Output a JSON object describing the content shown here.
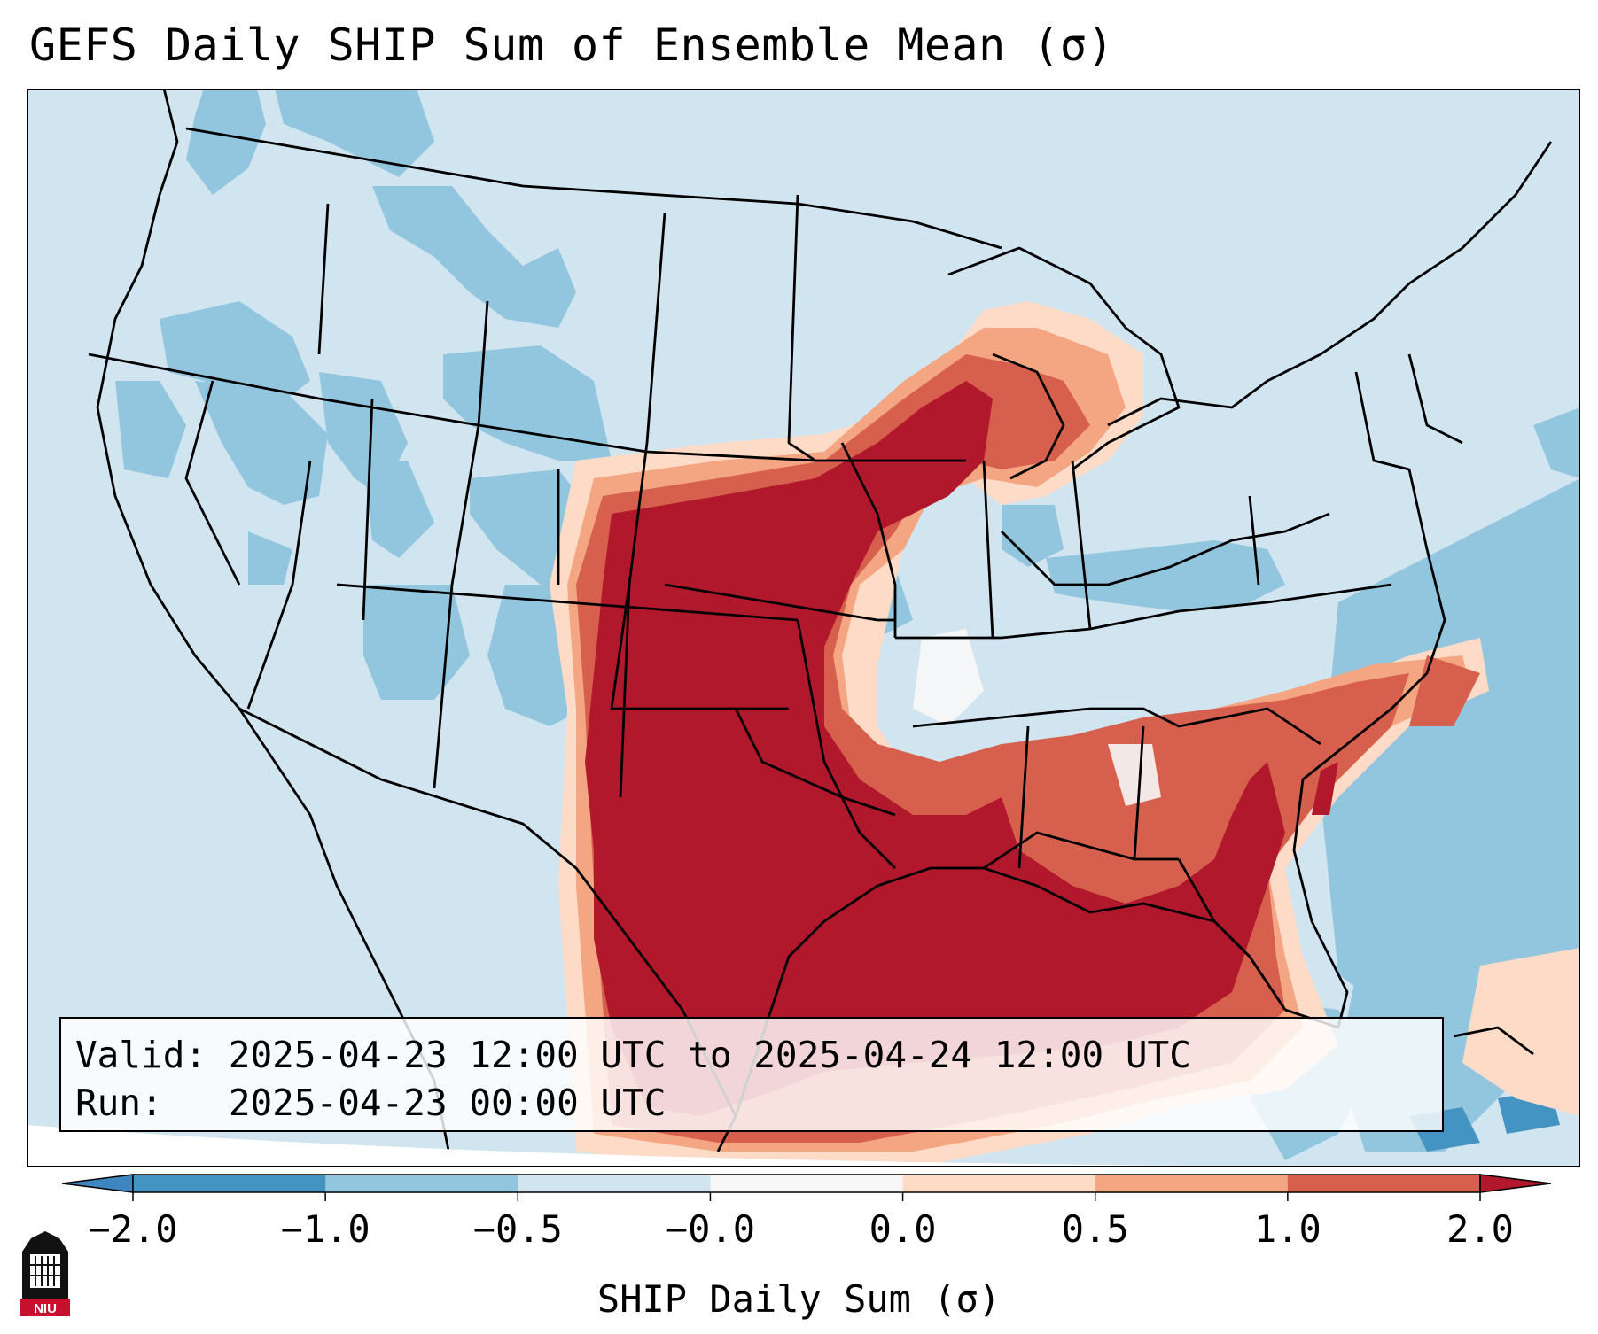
{
  "title": "GEFS Daily SHIP Sum of Ensemble Mean (σ)",
  "info": {
    "valid_label": "Valid:",
    "valid_value": "2025-04-23 12:00 UTC to 2025-04-24 12:00 UTC",
    "run_label": "Run:",
    "run_value": "2025-04-23 00:00 UTC"
  },
  "colorbar": {
    "label": "SHIP Daily Sum (σ)",
    "ticks": [
      "−2.0",
      "−1.0",
      "−0.5",
      "−0.0",
      "0.0",
      "0.5",
      "1.0",
      "2.0"
    ],
    "colors": {
      "under": "#3f86c0",
      "bins": [
        "#4393c3",
        "#92c5de",
        "#d1e5f0",
        "#f7f7f7",
        "#fddbc7",
        "#f4a582",
        "#d6604d"
      ],
      "over": "#b2182b"
    }
  },
  "map": {
    "region": "CONUS",
    "colors": {
      "background": "#d1e5f0",
      "light_blue": "#92c5de",
      "mid_blue": "#4393c3",
      "white": "#f7f7f7",
      "light_red": "#fddbc7",
      "salmon": "#f4a582",
      "red": "#d6604d",
      "dark_red": "#b2182b"
    }
  },
  "logo": {
    "text": "NIU"
  }
}
